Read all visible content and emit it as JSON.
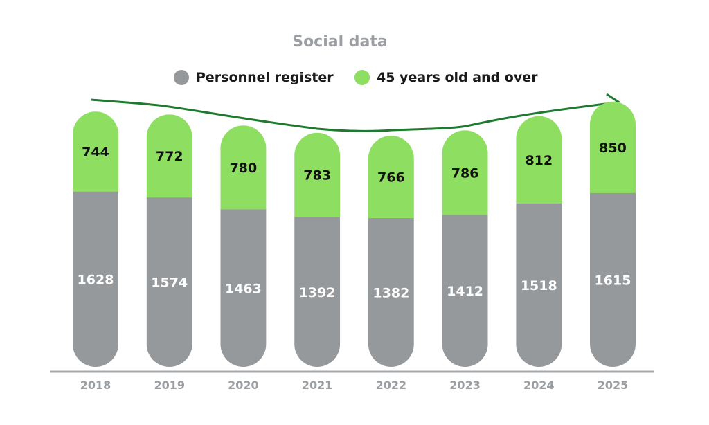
{
  "chart_data": {
    "type": "bar",
    "stacked": true,
    "title": "Social data",
    "categories": [
      "2018",
      "2019",
      "2020",
      "2021",
      "2022",
      "2023",
      "2024",
      "2025"
    ],
    "series": [
      {
        "name": "Personnel register",
        "color": "#96999c",
        "values": [
          1628,
          1574,
          1463,
          1392,
          1382,
          1412,
          1518,
          1615
        ]
      },
      {
        "name": "45 years old and over",
        "color": "#8ede62",
        "values": [
          744,
          772,
          780,
          783,
          766,
          786,
          812,
          850
        ]
      }
    ],
    "legend_position": "top-center",
    "grid": false,
    "trend_arrow_color": "#1e7a2e",
    "axis_line_color": "#a7a9ac"
  }
}
